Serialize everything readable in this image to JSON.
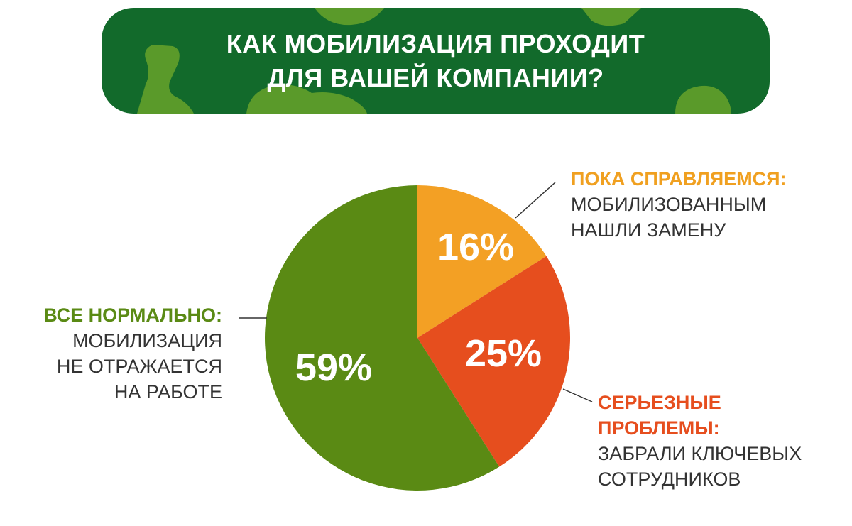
{
  "header": {
    "title_line1": "КАК МОБИЛИЗАЦИЯ ПРОХОДИТ",
    "title_line2": "ДЛЯ ВАШЕЙ КОМПАНИИ?"
  },
  "chart_data": {
    "type": "pie",
    "title": "КАК МОБИЛИЗАЦИЯ ПРОХОДИТ ДЛЯ ВАШЕЙ КОМПАНИИ?",
    "slices": [
      {
        "value": 16,
        "value_label": "16%",
        "label_head": "ПОКА СПРАВЛЯЕМСЯ:",
        "label_desc": [
          "МОБИЛИЗОВАННЫМ",
          "НАШЛИ ЗАМЕНУ"
        ],
        "color": "#f3a024"
      },
      {
        "value": 25,
        "value_label": "25%",
        "label_head": [
          "СЕРЬЕЗНЫЕ",
          "ПРОБЛЕМЫ:"
        ],
        "label_desc": [
          "ЗАБРАЛИ КЛЮЧЕВЫХ",
          "СОТРУДНИКОВ"
        ],
        "color": "#e64e1e"
      },
      {
        "value": 59,
        "value_label": "59%",
        "label_head": "ВСЕ НОРМАЛЬНО:",
        "label_desc": [
          "МОБИЛИЗАЦИЯ",
          "НЕ ОТРАЖАЕТСЯ",
          "НА РАБОТЕ"
        ],
        "color": "#5a8a14"
      }
    ],
    "legend": "callouts-around-pie"
  },
  "colors": {
    "banner_bg": "#126a2b",
    "banner_camo": "#5a9a2a",
    "title_text": "#ffffff",
    "label_text": "#333333"
  }
}
